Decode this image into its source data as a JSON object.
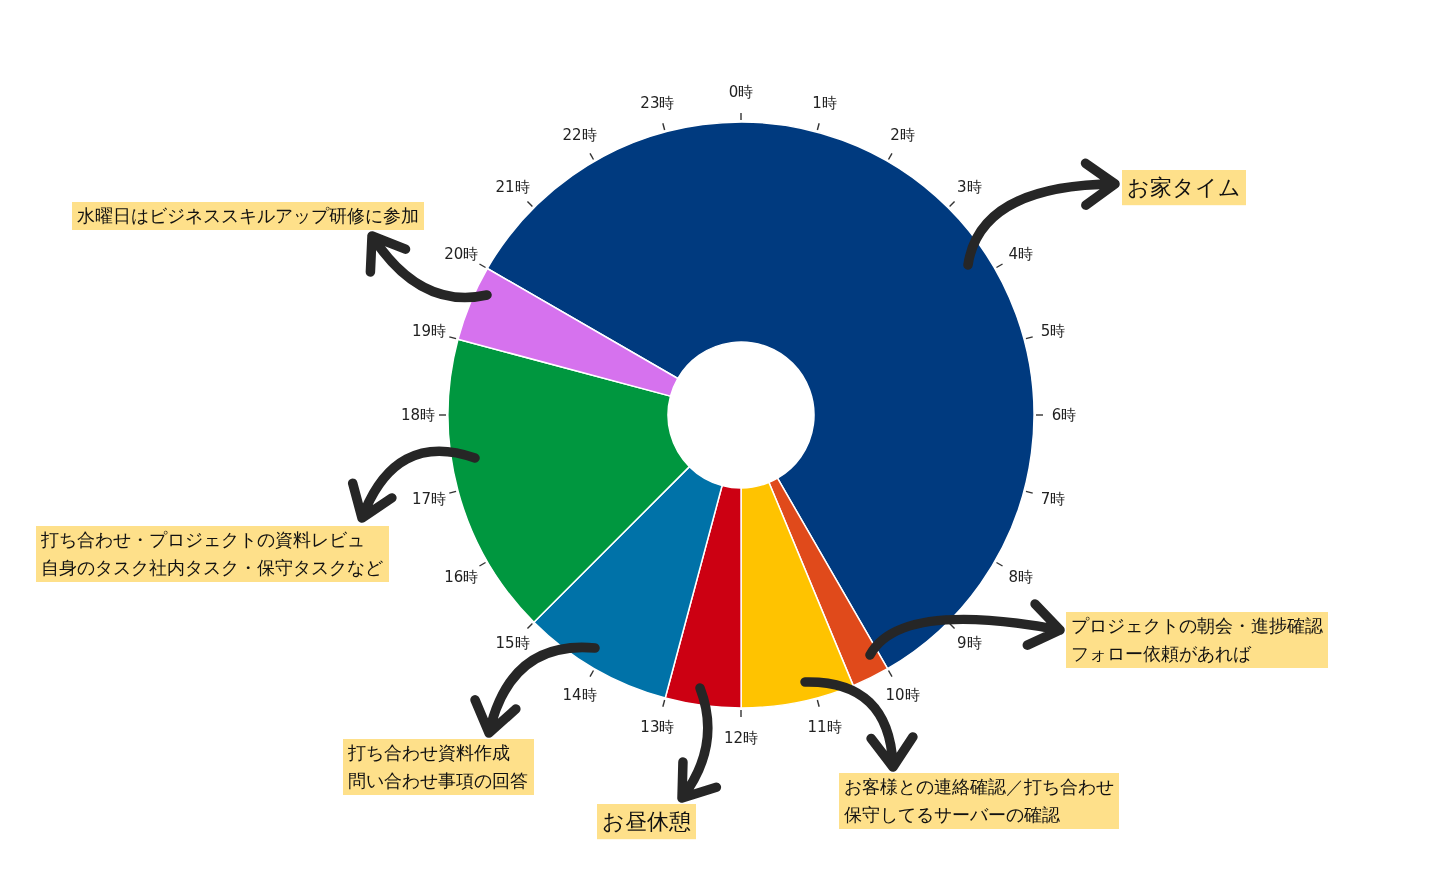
{
  "chart_data": {
    "type": "donut",
    "categories": [
      "お家タイム",
      "プロジェクトの朝会・進捗確認フォロー依頼があれば",
      "お客様との連絡確認／打ち合わせ保守してるサーバーの確認",
      "お昼休憩",
      "打ち合わせ資料作成問い合わせ事項の回答",
      "打ち合わせ・プロジェクトの資料レビュ自身のタスク社内タスク・保守タスクなど",
      "水曜日はビジネススキルアップ研修に参加"
    ],
    "values": [
      58.33,
      2.08,
      6.25,
      4.17,
      8.33,
      16.67,
      4.17
    ],
    "colors": [
      "#003a7f",
      "#e04a1b",
      "#ffc300",
      "#cc0012",
      "#0072a8",
      "#00973f",
      "#d672ee"
    ],
    "annotations": [
      "0時",
      "1時",
      "2時",
      "3時",
      "4時",
      "5時",
      "6時",
      "7時",
      "8時",
      "9時",
      "10時",
      "11時",
      "12時",
      "13時",
      "14時",
      "15時",
      "16時",
      "17時",
      "18時",
      "19時",
      "20時",
      "21時",
      "22時",
      "23時"
    ]
  }
}
